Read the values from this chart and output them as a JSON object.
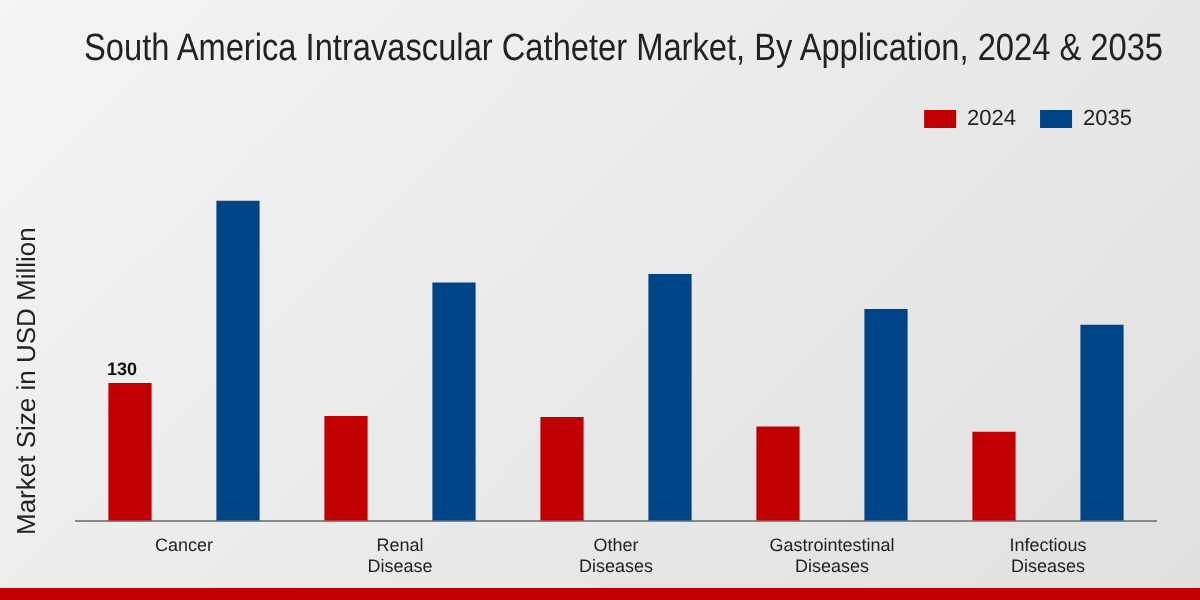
{
  "chart_data": {
    "type": "bar",
    "title": "South America Intravascular Catheter Market, By Application, 2024 & 2035",
    "ylabel": "Market Size in USD Million",
    "categories": [
      "Cancer",
      "Renal\nDisease",
      "Other\nDiseases",
      "Gastrointestinal\nDiseases",
      "Infectious\nDiseases"
    ],
    "series": [
      {
        "name": "2024",
        "color": "#c00000",
        "values": [
          130,
          99,
          98,
          89,
          84
        ],
        "value_labels": [
          "130",
          null,
          null,
          null,
          null
        ]
      },
      {
        "name": "2035",
        "color": "#004488",
        "values": [
          302,
          225,
          233,
          200,
          185
        ]
      }
    ],
    "legend": "top right",
    "grid": false
  }
}
